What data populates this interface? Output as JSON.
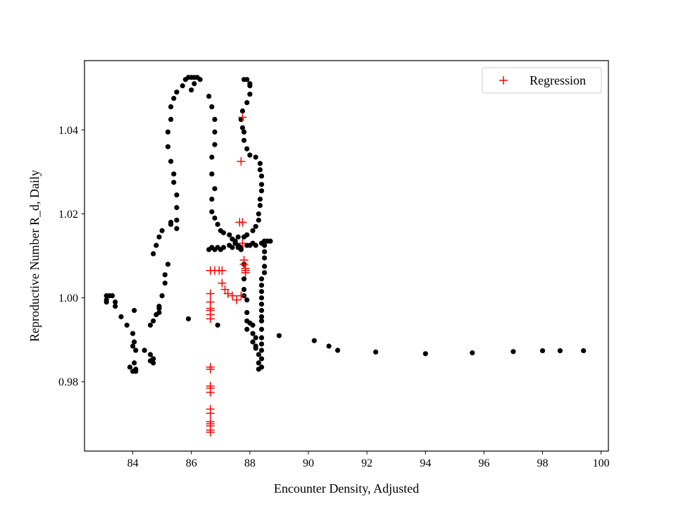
{
  "chart_data": {
    "type": "scatter",
    "xlabel": "Encounter Density, Adjusted",
    "ylabel": "Reproductive Number R_d, Daily",
    "xlim": [
      82.35,
      100.25
    ],
    "ylim": [
      0.9635,
      1.0565
    ],
    "x_ticks": [
      84,
      86,
      88,
      90,
      92,
      94,
      96,
      98,
      100
    ],
    "y_ticks": [
      0.98,
      1.0,
      1.02,
      1.04
    ],
    "x_tick_labels": [
      "84",
      "86",
      "88",
      "90",
      "92",
      "94",
      "96",
      "98",
      "100"
    ],
    "y_tick_labels": [
      "0.98",
      "1.00",
      "1.02",
      "1.04"
    ],
    "grid": false,
    "legend": {
      "position": "top-right",
      "entries": [
        "Regression"
      ]
    },
    "series": [
      {
        "marker": "dot",
        "color": "#000000",
        "points": [
          [
            83.1,
            1.0005
          ],
          [
            83.1,
            0.9995
          ],
          [
            83.1,
            0.999
          ],
          [
            83.2,
            1.0005
          ],
          [
            83.3,
            1.0005
          ],
          [
            83.4,
            0.999
          ],
          [
            83.4,
            0.998
          ],
          [
            83.6,
            0.9955
          ],
          [
            83.8,
            0.9935
          ],
          [
            83.9,
            0.9835
          ],
          [
            84.0,
            0.9825
          ],
          [
            84.05,
            0.9845
          ],
          [
            84.1,
            0.983
          ],
          [
            84.1,
            0.9825
          ],
          [
            84.0,
            0.9885
          ],
          [
            84.05,
            0.9895
          ],
          [
            84.1,
            0.9875
          ],
          [
            84.0,
            0.9915
          ],
          [
            84.05,
            0.997
          ],
          [
            84.4,
            0.9875
          ],
          [
            84.6,
            0.9865
          ],
          [
            84.6,
            0.985
          ],
          [
            84.7,
            0.9855
          ],
          [
            84.7,
            0.9845
          ],
          [
            84.7,
            0.9855
          ],
          [
            84.6,
            0.9935
          ],
          [
            84.7,
            0.9945
          ],
          [
            84.8,
            0.996
          ],
          [
            84.9,
            0.9965
          ],
          [
            84.9,
            0.9975
          ],
          [
            84.9,
            0.998
          ],
          [
            85.0,
            1.0005
          ],
          [
            85.1,
            1.0035
          ],
          [
            85.1,
            1.0055
          ],
          [
            85.2,
            1.008
          ],
          [
            84.7,
            1.0105
          ],
          [
            84.8,
            1.0125
          ],
          [
            84.9,
            1.0145
          ],
          [
            85.0,
            1.016
          ],
          [
            85.3,
            1.0175
          ],
          [
            85.3,
            1.018
          ],
          [
            85.5,
            1.0165
          ],
          [
            85.5,
            1.0185
          ],
          [
            85.5,
            1.0215
          ],
          [
            85.5,
            1.0245
          ],
          [
            85.4,
            1.0275
          ],
          [
            85.4,
            1.0295
          ],
          [
            85.3,
            1.0325
          ],
          [
            85.2,
            1.036
          ],
          [
            85.2,
            1.0395
          ],
          [
            85.3,
            1.0425
          ],
          [
            85.3,
            1.0455
          ],
          [
            85.4,
            1.0475
          ],
          [
            85.5,
            1.049
          ],
          [
            85.7,
            1.0505
          ],
          [
            85.8,
            1.052
          ],
          [
            85.9,
            1.0525
          ],
          [
            86.0,
            1.0525
          ],
          [
            86.1,
            1.0525
          ],
          [
            86.2,
            1.0525
          ],
          [
            86.3,
            1.052
          ],
          [
            86.1,
            1.051
          ],
          [
            86.0,
            1.0495
          ],
          [
            86.6,
            1.048
          ],
          [
            86.7,
            1.0455
          ],
          [
            86.8,
            1.0425
          ],
          [
            86.8,
            1.0395
          ],
          [
            86.8,
            1.0365
          ],
          [
            86.7,
            1.0335
          ],
          [
            86.7,
            1.0295
          ],
          [
            86.8,
            1.026
          ],
          [
            86.7,
            1.0235
          ],
          [
            86.7,
            1.0205
          ],
          [
            86.8,
            1.019
          ],
          [
            86.9,
            1.0175
          ],
          [
            87.0,
            1.016
          ],
          [
            87.1,
            1.0155
          ],
          [
            87.3,
            1.015
          ],
          [
            87.4,
            1.014
          ],
          [
            87.5,
            1.0135
          ],
          [
            87.6,
            1.0125
          ],
          [
            87.7,
            1.012
          ],
          [
            86.6,
            1.0115
          ],
          [
            86.7,
            1.012
          ],
          [
            86.8,
            1.0115
          ],
          [
            86.9,
            1.012
          ],
          [
            87.0,
            1.0115
          ],
          [
            87.1,
            1.012
          ],
          [
            87.3,
            1.0125
          ],
          [
            87.4,
            1.012
          ],
          [
            87.5,
            1.013
          ],
          [
            87.6,
            1.012
          ],
          [
            87.7,
            1.0115
          ],
          [
            87.9,
            1.0125
          ],
          [
            88.0,
            1.0125
          ],
          [
            88.1,
            1.013
          ],
          [
            88.2,
            1.0125
          ],
          [
            88.4,
            1.013
          ],
          [
            88.5,
            1.0135
          ],
          [
            88.6,
            1.0135
          ],
          [
            88.7,
            1.0135
          ],
          [
            86.9,
            0.9935
          ],
          [
            85.9,
            0.995
          ],
          [
            87.7,
            1.0425
          ],
          [
            87.75,
            1.0445
          ],
          [
            87.7,
            1.0425
          ],
          [
            87.75,
            1.0405
          ],
          [
            87.8,
            1.0395
          ],
          [
            87.8,
            1.0375
          ],
          [
            87.9,
            1.0355
          ],
          [
            88.0,
            1.034
          ],
          [
            88.2,
            1.0335
          ],
          [
            88.35,
            1.032
          ],
          [
            88.35,
            1.0305
          ],
          [
            88.4,
            1.029
          ],
          [
            88.4,
            1.027
          ],
          [
            88.4,
            1.0255
          ],
          [
            88.35,
            1.0235
          ],
          [
            88.35,
            1.022
          ],
          [
            88.3,
            1.02
          ],
          [
            88.3,
            1.0185
          ],
          [
            88.2,
            1.017
          ],
          [
            88.1,
            1.016
          ],
          [
            87.9,
            1.015
          ],
          [
            87.8,
            1.0145
          ],
          [
            87.6,
            1.0145
          ],
          [
            87.9,
            1.0465
          ],
          [
            88.0,
            1.0485
          ],
          [
            88.0,
            1.051
          ],
          [
            88.0,
            1.0505
          ],
          [
            87.9,
            1.052
          ],
          [
            87.8,
            1.052
          ],
          [
            87.8,
            1.008
          ],
          [
            87.8,
            1.0045
          ],
          [
            87.8,
            1.002
          ],
          [
            87.8,
            1.0005
          ],
          [
            87.9,
            0.9995
          ],
          [
            87.9,
            0.9965
          ],
          [
            87.9,
            0.9945
          ],
          [
            88.0,
            0.994
          ],
          [
            88.1,
            0.9935
          ],
          [
            88.1,
            0.9915
          ],
          [
            88.2,
            0.9905
          ],
          [
            88.2,
            0.9885
          ],
          [
            87.9,
            0.9925
          ],
          [
            88.1,
            0.9895
          ],
          [
            88.2,
            0.988
          ],
          [
            88.3,
            0.9865
          ],
          [
            88.3,
            0.9845
          ],
          [
            88.3,
            0.983
          ],
          [
            88.4,
            0.9835
          ],
          [
            88.4,
            0.9855
          ],
          [
            88.4,
            0.9875
          ],
          [
            88.4,
            0.989
          ],
          [
            88.4,
            0.9905
          ],
          [
            88.4,
            0.9925
          ],
          [
            88.4,
            0.9945
          ],
          [
            88.4,
            0.9955
          ],
          [
            88.4,
            0.997
          ],
          [
            88.4,
            0.9985
          ],
          [
            88.4,
            1.0
          ],
          [
            88.4,
            1.0015
          ],
          [
            88.4,
            1.003
          ],
          [
            88.4,
            1.0045
          ],
          [
            88.5,
            1.006
          ],
          [
            88.5,
            1.0075
          ],
          [
            88.5,
            1.0095
          ],
          [
            88.5,
            1.011
          ],
          [
            88.5,
            1.0125
          ],
          [
            88.5,
            1.0135
          ],
          [
            89.0,
            0.991
          ],
          [
            90.2,
            0.9898
          ],
          [
            90.7,
            0.9885
          ],
          [
            91.0,
            0.9875
          ],
          [
            92.3,
            0.9871
          ],
          [
            94.0,
            0.9867
          ],
          [
            95.6,
            0.9869
          ],
          [
            97.0,
            0.9872
          ],
          [
            98.0,
            0.9874
          ],
          [
            98.6,
            0.9874
          ],
          [
            99.4,
            0.9874
          ]
        ]
      },
      {
        "name": "Regression",
        "marker": "plus",
        "color": "#ff0000",
        "points": [
          [
            87.75,
            1.043
          ],
          [
            87.7,
            1.0325
          ],
          [
            87.65,
            1.018
          ],
          [
            87.75,
            1.018
          ],
          [
            87.75,
            1.013
          ],
          [
            87.8,
            1.009
          ],
          [
            87.8,
            1.008
          ],
          [
            87.85,
            1.007
          ],
          [
            87.85,
            1.0065
          ],
          [
            87.85,
            1.006
          ],
          [
            87.7,
            1.0005
          ],
          [
            87.55,
            0.9995
          ],
          [
            87.4,
            1.0005
          ],
          [
            87.25,
            1.001
          ],
          [
            87.15,
            1.002
          ],
          [
            87.05,
            1.0035
          ],
          [
            87.05,
            1.0065
          ],
          [
            86.95,
            1.0065
          ],
          [
            86.8,
            1.0065
          ],
          [
            86.65,
            1.0065
          ],
          [
            86.65,
            1.001
          ],
          [
            86.65,
            0.999
          ],
          [
            86.65,
            0.9975
          ],
          [
            86.65,
            0.997
          ],
          [
            86.65,
            0.996
          ],
          [
            86.65,
            0.995
          ],
          [
            86.65,
            0.9835
          ],
          [
            86.65,
            0.983
          ],
          [
            86.65,
            0.979
          ],
          [
            86.65,
            0.9785
          ],
          [
            86.65,
            0.9775
          ],
          [
            86.65,
            0.9735
          ],
          [
            86.65,
            0.9725
          ],
          [
            86.65,
            0.9705
          ],
          [
            86.65,
            0.97
          ],
          [
            86.65,
            0.9695
          ],
          [
            86.65,
            0.9685
          ],
          [
            86.65,
            0.968
          ]
        ]
      }
    ]
  }
}
